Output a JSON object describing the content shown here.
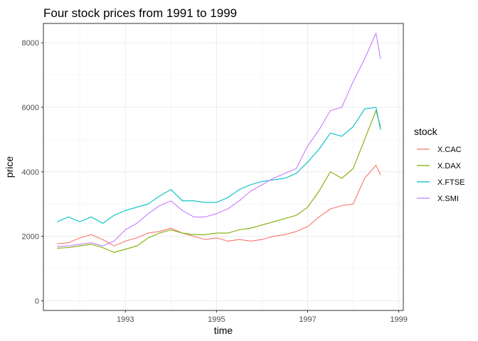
{
  "chart_data": {
    "type": "line",
    "title": "Four stock prices from 1991 to 1999",
    "xlabel": "time",
    "ylabel": "price",
    "xlim": [
      1991.2,
      1999.1
    ],
    "ylim": [
      -300,
      8600
    ],
    "x_ticks": [
      1993,
      1995,
      1997,
      1999
    ],
    "y_ticks": [
      0,
      2000,
      4000,
      6000,
      8000
    ],
    "x_tick_labels": [
      "1993",
      "1995",
      "1997",
      "1999"
    ],
    "y_tick_labels": [
      "0",
      "2000",
      "4000",
      "6000",
      "8000"
    ],
    "grid": true,
    "legend": {
      "title": "stock",
      "position": "right"
    },
    "series": [
      {
        "name": "X.CAC",
        "color": "#F8766D",
        "x": [
          1991.5,
          1991.75,
          1992.0,
          1992.25,
          1992.5,
          1992.75,
          1993.0,
          1993.25,
          1993.5,
          1993.75,
          1994.0,
          1994.25,
          1994.5,
          1994.75,
          1995.0,
          1995.25,
          1995.5,
          1995.75,
          1996.0,
          1996.25,
          1996.5,
          1996.75,
          1997.0,
          1997.25,
          1997.5,
          1997.75,
          1998.0,
          1998.25,
          1998.5,
          1998.6
        ],
        "y": [
          1770,
          1800,
          1950,
          2050,
          1900,
          1700,
          1850,
          1950,
          2100,
          2150,
          2250,
          2100,
          2000,
          1900,
          1950,
          1850,
          1900,
          1850,
          1900,
          2000,
          2050,
          2150,
          2300,
          2600,
          2850,
          2950,
          3000,
          3800,
          4200,
          3900
        ]
      },
      {
        "name": "X.DAX",
        "color": "#7CAE00",
        "x": [
          1991.5,
          1991.75,
          1992.0,
          1992.25,
          1992.5,
          1992.75,
          1993.0,
          1993.25,
          1993.5,
          1993.75,
          1994.0,
          1994.25,
          1994.5,
          1994.75,
          1995.0,
          1995.25,
          1995.5,
          1995.75,
          1996.0,
          1996.25,
          1996.5,
          1996.75,
          1997.0,
          1997.25,
          1997.5,
          1997.75,
          1998.0,
          1998.25,
          1998.5,
          1998.6
        ],
        "y": [
          1630,
          1650,
          1700,
          1750,
          1650,
          1500,
          1600,
          1700,
          1950,
          2100,
          2200,
          2100,
          2050,
          2050,
          2100,
          2100,
          2200,
          2250,
          2350,
          2450,
          2550,
          2650,
          2900,
          3400,
          4000,
          3800,
          4100,
          5000,
          5900,
          5400
        ]
      },
      {
        "name": "X.FTSE",
        "color": "#00BFC4",
        "x": [
          1991.5,
          1991.75,
          1992.0,
          1992.25,
          1992.5,
          1992.75,
          1993.0,
          1993.25,
          1993.5,
          1993.75,
          1994.0,
          1994.25,
          1994.5,
          1994.75,
          1995.0,
          1995.25,
          1995.5,
          1995.75,
          1996.0,
          1996.25,
          1996.5,
          1996.75,
          1997.0,
          1997.25,
          1997.5,
          1997.75,
          1998.0,
          1998.25,
          1998.5,
          1998.6
        ],
        "y": [
          2450,
          2600,
          2450,
          2600,
          2400,
          2650,
          2800,
          2900,
          3000,
          3250,
          3450,
          3100,
          3100,
          3050,
          3050,
          3200,
          3450,
          3600,
          3700,
          3750,
          3800,
          3950,
          4300,
          4700,
          5200,
          5100,
          5400,
          5950,
          6000,
          5300
        ]
      },
      {
        "name": "X.SMI",
        "color": "#C77CFF",
        "x": [
          1991.5,
          1991.75,
          1992.0,
          1992.25,
          1992.5,
          1992.75,
          1993.0,
          1993.25,
          1993.5,
          1993.75,
          1994.0,
          1994.25,
          1994.5,
          1994.75,
          1995.0,
          1995.25,
          1995.5,
          1995.75,
          1996.0,
          1996.25,
          1996.5,
          1996.75,
          1997.0,
          1997.25,
          1997.5,
          1997.75,
          1998.0,
          1998.25,
          1998.5,
          1998.6
        ],
        "y": [
          1680,
          1700,
          1750,
          1800,
          1700,
          1850,
          2200,
          2400,
          2700,
          2950,
          3100,
          2800,
          2600,
          2600,
          2700,
          2850,
          3100,
          3400,
          3600,
          3800,
          3950,
          4100,
          4800,
          5300,
          5900,
          6000,
          6800,
          7500,
          8300,
          7500
        ]
      }
    ]
  }
}
